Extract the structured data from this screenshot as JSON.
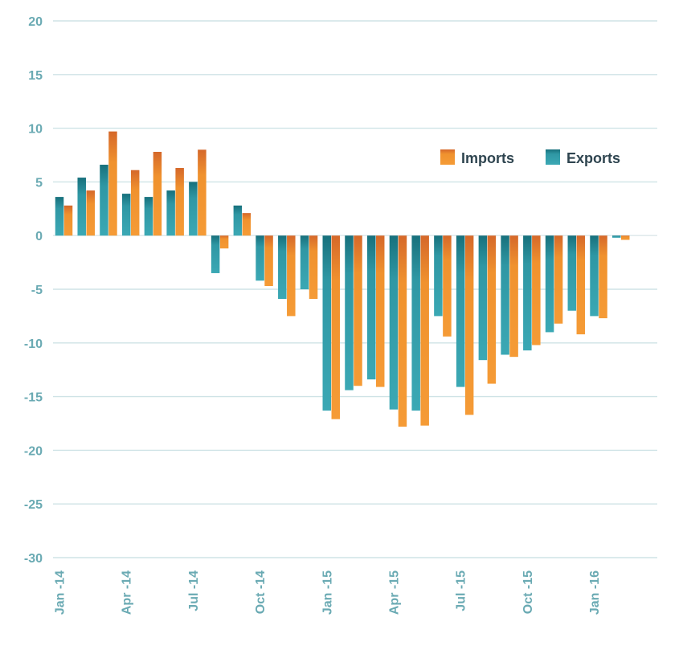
{
  "chart_data": {
    "type": "bar",
    "title": "",
    "xlabel": "",
    "ylabel": "",
    "ylim": [
      -30,
      20
    ],
    "y_ticks": [
      "20",
      "15",
      "10",
      "5",
      "0",
      "-5",
      "-10",
      "-15",
      "-20",
      "-25",
      "-30"
    ],
    "y_tick_values": [
      20,
      15,
      10,
      5,
      0,
      -5,
      -10,
      -15,
      -20,
      -25,
      -30
    ],
    "x_tick_labels": [
      {
        "label": "Jan -14",
        "month_index": 0
      },
      {
        "label": "Apr -14",
        "month_index": 3
      },
      {
        "label": "Jul -14",
        "month_index": 6
      },
      {
        "label": "Oct -14",
        "month_index": 9
      },
      {
        "label": "Jan -15",
        "month_index": 12
      },
      {
        "label": "Apr -15",
        "month_index": 15
      },
      {
        "label": "Jul -15",
        "month_index": 18
      },
      {
        "label": "Oct -15",
        "month_index": 21
      },
      {
        "label": "Jan -16",
        "month_index": 24
      }
    ],
    "grid": true,
    "legend_position": "top-right",
    "series": [
      {
        "name": "Exports",
        "color": "#2f97a4",
        "values": [
          3.6,
          5.4,
          6.6,
          3.9,
          3.6,
          4.2,
          5.0,
          -3.5,
          2.8,
          -4.2,
          -5.9,
          -5.0,
          -16.3,
          -14.4,
          -13.4,
          -16.2,
          -16.3,
          -7.5,
          -14.1,
          -11.6,
          -11.1,
          -10.7,
          -9.0,
          -7.0,
          -7.5,
          -0.2
        ]
      },
      {
        "name": "Imports",
        "color": "#f0922e",
        "values": [
          2.8,
          4.2,
          9.7,
          6.1,
          7.8,
          6.3,
          8.0,
          -1.2,
          2.1,
          -4.7,
          -7.5,
          -5.9,
          -17.1,
          -14.0,
          -14.1,
          -17.8,
          -17.7,
          -9.4,
          -16.7,
          -13.8,
          -11.3,
          -10.2,
          -8.2,
          -9.2,
          -7.7,
          -0.4
        ]
      }
    ]
  },
  "legend": {
    "imports_label": "Imports",
    "exports_label": "Exports"
  },
  "colors": {
    "axis_text": "#6aaab3",
    "grid": "#cfe3e6",
    "legend_text": "#2f4550"
  }
}
